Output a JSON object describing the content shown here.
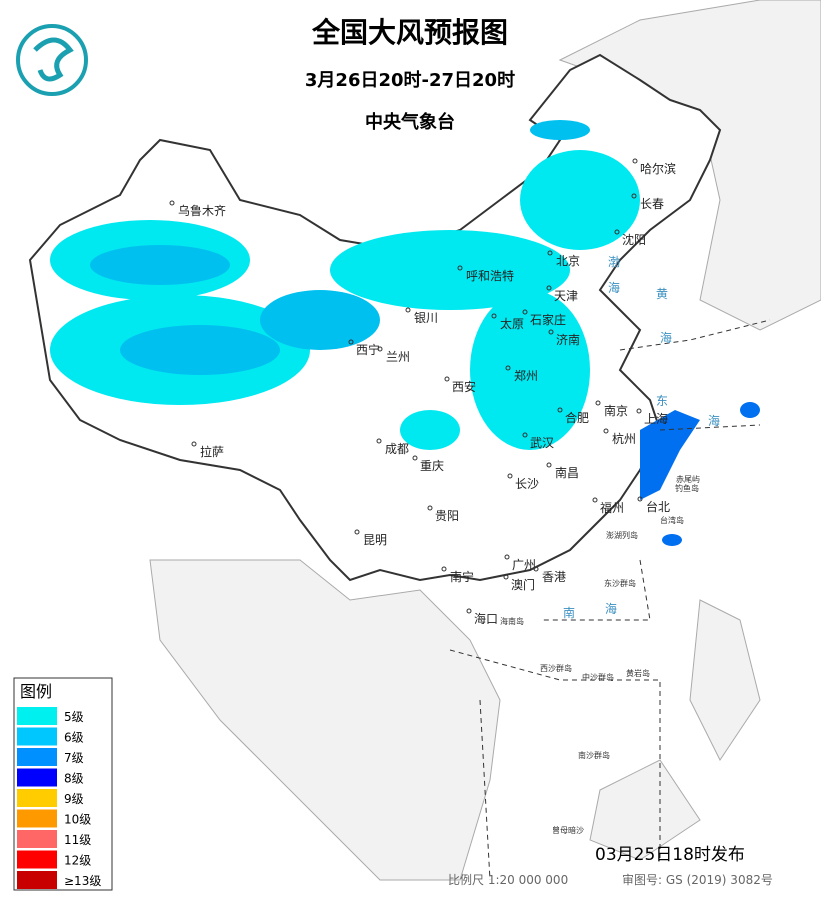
{
  "header": {
    "title": "全国大风预报图",
    "period": "3月26日20时-27日20时",
    "issuer": "中央气象台"
  },
  "legend": {
    "title": "图例",
    "items": [
      {
        "label": "5级",
        "color": "#00f0f0"
      },
      {
        "label": "6级",
        "color": "#00c8ff"
      },
      {
        "label": "7级",
        "color": "#0090ff"
      },
      {
        "label": "8级",
        "color": "#0000ff"
      },
      {
        "label": "9级",
        "color": "#ffcc00"
      },
      {
        "label": "10级",
        "color": "#ff9900"
      },
      {
        "label": "11级",
        "color": "#ff6666"
      },
      {
        "label": "12级",
        "color": "#ff0000"
      },
      {
        "label": "≥13级",
        "color": "#c80000"
      }
    ]
  },
  "cities": [
    "乌鲁木齐",
    "哈尔滨",
    "长春",
    "沈阳",
    "北京",
    "天津",
    "呼和浩特",
    "石家庄",
    "太原",
    "济南",
    "银川",
    "西宁",
    "兰州",
    "西安",
    "郑州",
    "合肥",
    "南京",
    "上海",
    "杭州",
    "武汉",
    "成都",
    "重庆",
    "拉萨",
    "长沙",
    "南昌",
    "贵阳",
    "昆明",
    "福州",
    "台北",
    "广州",
    "南宁",
    "澳门",
    "香港",
    "海口"
  ],
  "places": [
    "赤尾屿",
    "钓鱼岛",
    "台湾岛",
    "澎湖列岛",
    "东沙群岛",
    "西沙群岛",
    "中沙群岛",
    "黄岩岛",
    "南沙群岛",
    "曾母暗沙",
    "海南岛"
  ],
  "seas": [
    "渤",
    "海",
    "黄",
    "海",
    "东",
    "海",
    "南",
    "海"
  ],
  "footer": {
    "issued": "03月25日18时发布",
    "scale": "比例尺 1:20 000 000",
    "review": "审图号: GS (2019) 3082号"
  }
}
